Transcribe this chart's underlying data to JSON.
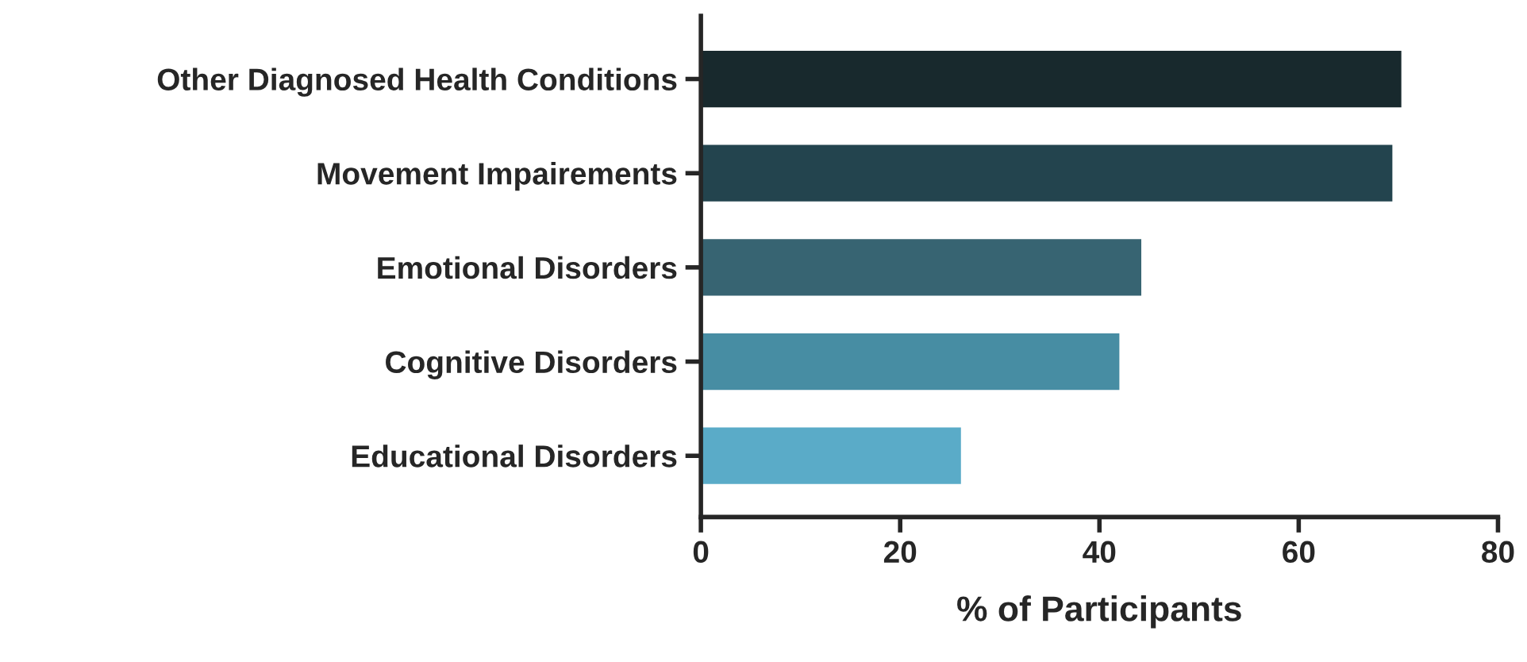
{
  "chart_data": {
    "type": "bar",
    "orientation": "horizontal",
    "xlabel": "% of Participants",
    "categories": [
      "Other Diagnosed Health Conditions",
      "Movement Impairements",
      "Emotional Disorders",
      "Cognitive Disorders",
      "Educational Disorders"
    ],
    "values": [
      70.3,
      69.4,
      44.2,
      42.0,
      26.1
    ],
    "colors": [
      "#18292d",
      "#23444e",
      "#376472",
      "#478da3",
      "#5aabc8"
    ],
    "xlim": [
      0,
      80
    ],
    "xticks": [
      0,
      20,
      40,
      60,
      80
    ],
    "grid": false
  }
}
